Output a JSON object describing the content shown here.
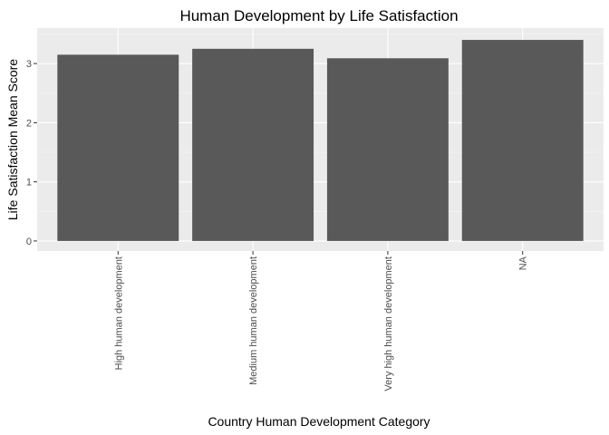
{
  "chart_data": {
    "type": "bar",
    "title": "Human Development by Life Satisfaction",
    "xlabel": "Country Human Development Category",
    "ylabel": "Life Satisfaction Mean Score",
    "categories": [
      "High human development",
      "Medium human development",
      "Very high human development",
      "NA"
    ],
    "values": [
      3.15,
      3.25,
      3.09,
      3.4
    ],
    "ylim": [
      -0.17,
      3.6
    ],
    "yticks": [
      0,
      1,
      2,
      3
    ],
    "grid": true,
    "legend": "none",
    "colors": {
      "panel": "#ebebeb",
      "grid_major": "#ffffff",
      "grid_minor": "#f5f5f5",
      "bar": "#595959",
      "tick_text": "#4d4d4d"
    }
  }
}
